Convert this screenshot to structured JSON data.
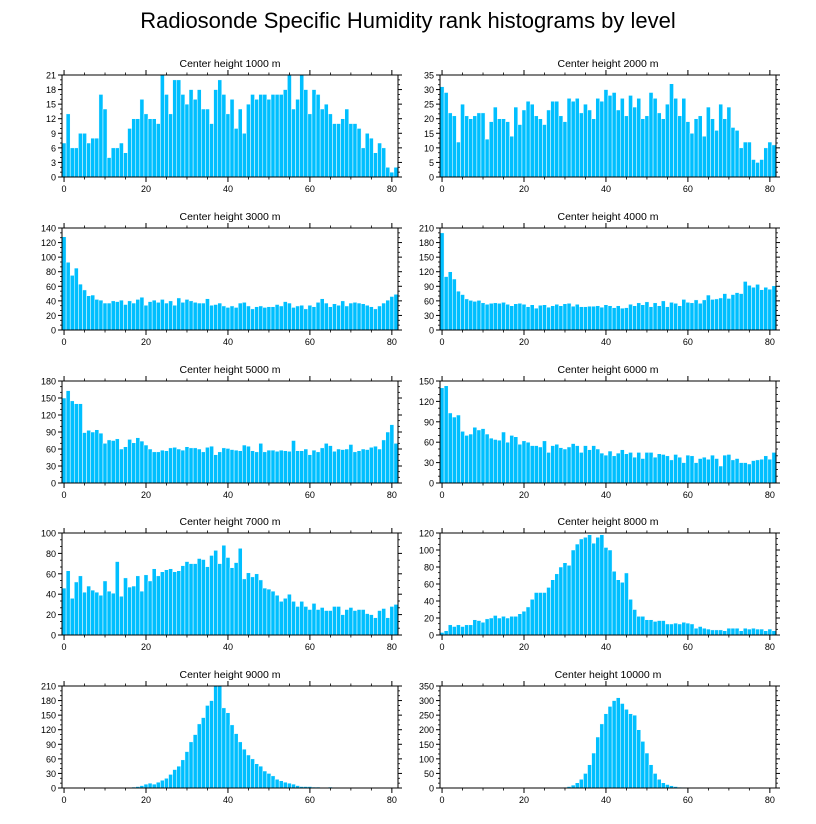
{
  "page": {
    "title": "Radiosonde Specific Humidity rank histograms by level"
  },
  "style": {
    "bar_color": "#00bfff",
    "bar_outline": "#ffffff",
    "axis_color": "#000000"
  },
  "chart_data": [
    {
      "type": "bar",
      "title": "Center height 1000 m",
      "ylim": [
        0,
        21
      ],
      "yticks": [
        0,
        3,
        6,
        9,
        12,
        15,
        18,
        21
      ],
      "xlim": [
        -0.5,
        81.5
      ],
      "xticks": [
        0,
        20,
        40,
        60,
        80
      ],
      "xlabel": "",
      "ylabel": "",
      "values": [
        7,
        13,
        6,
        6,
        9,
        9,
        7,
        8,
        8,
        17,
        14,
        4,
        6,
        6,
        7,
        5,
        10,
        12,
        12,
        16,
        13,
        12,
        12,
        11,
        21,
        17,
        13,
        20,
        20,
        17,
        15,
        18,
        16,
        18,
        14,
        14,
        11,
        18,
        20,
        17,
        13,
        16,
        10,
        14,
        9,
        15,
        17,
        16,
        17,
        17,
        16,
        17,
        17,
        17,
        18,
        21,
        14,
        16,
        21,
        18,
        13,
        18,
        17,
        14,
        15,
        13,
        11,
        11,
        12,
        14,
        11,
        11,
        10,
        6,
        9,
        8,
        5,
        7,
        6,
        2,
        1,
        2
      ]
    },
    {
      "type": "bar",
      "title": "Center height 2000 m",
      "ylim": [
        0,
        35
      ],
      "yticks": [
        0,
        5,
        10,
        15,
        20,
        25,
        30,
        35
      ],
      "xlim": [
        -0.5,
        81.5
      ],
      "xticks": [
        0,
        20,
        40,
        60,
        80
      ],
      "xlabel": "",
      "ylabel": "",
      "values": [
        31,
        29,
        22,
        21,
        12,
        25,
        21,
        20,
        21,
        22,
        22,
        13,
        19,
        24,
        20,
        20,
        19,
        14,
        24,
        18,
        23,
        26,
        25,
        21,
        20,
        18,
        23,
        26,
        26,
        21,
        19,
        27,
        26,
        27,
        22,
        25,
        23,
        20,
        27,
        26,
        30,
        28,
        29,
        23,
        27,
        21,
        28,
        24,
        27,
        20,
        21,
        29,
        27,
        22,
        20,
        25,
        32,
        27,
        21,
        27,
        19,
        15,
        20,
        21,
        14,
        24,
        20,
        16,
        25,
        20,
        24,
        17,
        16,
        10,
        12,
        12,
        6,
        5,
        6,
        10,
        12,
        11
      ]
    },
    {
      "type": "bar",
      "title": "Center height 3000 m",
      "ylim": [
        0,
        140
      ],
      "yticks": [
        0,
        20,
        40,
        60,
        80,
        100,
        120,
        140
      ],
      "xlim": [
        -0.5,
        81.5
      ],
      "xticks": [
        0,
        20,
        40,
        60,
        80
      ],
      "xlabel": "",
      "ylabel": "",
      "values": [
        128,
        93,
        75,
        85,
        63,
        55,
        47,
        48,
        42,
        41,
        37,
        37,
        40,
        39,
        41,
        35,
        40,
        37,
        42,
        45,
        34,
        39,
        41,
        38,
        42,
        37,
        40,
        34,
        44,
        38,
        42,
        40,
        38,
        37,
        37,
        43,
        34,
        35,
        37,
        33,
        31,
        33,
        31,
        37,
        38,
        33,
        29,
        32,
        33,
        31,
        32,
        32,
        35,
        33,
        39,
        37,
        31,
        33,
        34,
        29,
        34,
        32,
        38,
        43,
        37,
        32,
        36,
        34,
        40,
        33,
        37,
        38,
        37,
        36,
        34,
        32,
        29,
        33,
        37,
        41,
        46,
        49
      ]
    },
    {
      "type": "bar",
      "title": "Center height 4000 m",
      "ylim": [
        0,
        210
      ],
      "yticks": [
        0,
        30,
        60,
        90,
        120,
        150,
        180,
        210
      ],
      "xlim": [
        -0.5,
        81.5
      ],
      "xticks": [
        0,
        20,
        40,
        60,
        80
      ],
      "xlabel": "",
      "ylabel": "",
      "values": [
        200,
        110,
        120,
        105,
        80,
        73,
        64,
        61,
        59,
        61,
        56,
        53,
        55,
        56,
        55,
        57,
        53,
        50,
        54,
        55,
        53,
        48,
        52,
        45,
        51,
        52,
        47,
        50,
        53,
        50,
        54,
        55,
        49,
        53,
        48,
        48,
        49,
        49,
        50,
        47,
        52,
        50,
        46,
        50,
        45,
        46,
        53,
        50,
        56,
        52,
        58,
        48,
        56,
        50,
        60,
        48,
        57,
        55,
        50,
        63,
        57,
        56,
        62,
        55,
        62,
        72,
        63,
        64,
        66,
        75,
        65,
        73,
        77,
        75,
        100,
        92,
        88,
        94,
        83,
        88,
        84,
        91
      ]
    },
    {
      "type": "bar",
      "title": "Center height 5000 m",
      "ylim": [
        0,
        180
      ],
      "yticks": [
        0,
        30,
        60,
        90,
        120,
        150,
        180
      ],
      "xlim": [
        -0.5,
        81.5
      ],
      "xticks": [
        0,
        20,
        40,
        60,
        80
      ],
      "xlabel": "",
      "ylabel": "",
      "values": [
        150,
        163,
        145,
        140,
        140,
        89,
        93,
        90,
        94,
        88,
        70,
        76,
        75,
        78,
        60,
        64,
        77,
        71,
        80,
        74,
        67,
        60,
        55,
        55,
        58,
        57,
        62,
        63,
        60,
        58,
        64,
        62,
        62,
        60,
        55,
        63,
        65,
        50,
        55,
        62,
        61,
        59,
        58,
        57,
        67,
        65,
        57,
        55,
        70,
        55,
        58,
        58,
        56,
        58,
        57,
        56,
        75,
        57,
        57,
        60,
        50,
        58,
        55,
        62,
        70,
        66,
        56,
        60,
        59,
        60,
        68,
        55,
        57,
        60,
        59,
        63,
        65,
        60,
        76,
        90,
        103,
        70
      ]
    },
    {
      "type": "bar",
      "title": "Center height 6000 m",
      "ylim": [
        0,
        150
      ],
      "yticks": [
        0,
        30,
        60,
        90,
        120,
        150
      ],
      "xlim": [
        -0.5,
        81.5
      ],
      "xticks": [
        0,
        20,
        40,
        60,
        80
      ],
      "xlabel": "",
      "ylabel": "",
      "values": [
        140,
        143,
        103,
        97,
        100,
        76,
        70,
        72,
        82,
        78,
        80,
        72,
        66,
        64,
        63,
        75,
        60,
        70,
        68,
        57,
        62,
        60,
        55,
        55,
        53,
        62,
        45,
        55,
        57,
        52,
        50,
        53,
        58,
        55,
        45,
        55,
        49,
        55,
        50,
        44,
        41,
        47,
        40,
        44,
        49,
        43,
        45,
        38,
        45,
        36,
        45,
        45,
        38,
        43,
        42,
        40,
        34,
        42,
        38,
        30,
        41,
        40,
        30,
        36,
        38,
        35,
        41,
        36,
        25,
        41,
        42,
        34,
        36,
        30,
        30,
        28,
        33,
        34,
        35,
        40,
        35,
        45
      ]
    },
    {
      "type": "bar",
      "title": "Center height 7000 m",
      "ylim": [
        0,
        100
      ],
      "yticks": [
        0,
        20,
        40,
        60,
        80,
        100
      ],
      "xlim": [
        -0.5,
        81.5
      ],
      "xticks": [
        0,
        20,
        40,
        60,
        80
      ],
      "xlabel": "",
      "ylabel": "",
      "values": [
        46,
        63,
        36,
        52,
        58,
        42,
        48,
        44,
        42,
        39,
        53,
        43,
        41,
        72,
        38,
        56,
        47,
        48,
        58,
        43,
        59,
        53,
        65,
        58,
        62,
        64,
        65,
        62,
        63,
        68,
        72,
        70,
        70,
        75,
        74,
        67,
        78,
        83,
        70,
        88,
        76,
        66,
        71,
        85,
        55,
        61,
        57,
        60,
        54,
        46,
        45,
        43,
        39,
        33,
        36,
        40,
        33,
        28,
        33,
        28,
        25,
        31,
        25,
        27,
        24,
        24,
        28,
        28,
        20,
        25,
        27,
        24,
        25,
        25,
        21,
        20,
        17,
        24,
        26,
        17,
        28,
        30
      ]
    },
    {
      "type": "bar",
      "title": "Center height 8000 m",
      "ylim": [
        0,
        120
      ],
      "yticks": [
        0,
        20,
        40,
        60,
        80,
        100,
        120
      ],
      "xlim": [
        -0.5,
        81.5
      ],
      "xticks": [
        0,
        20,
        40,
        60,
        80
      ],
      "xlabel": "",
      "ylabel": "",
      "values": [
        3,
        5,
        12,
        10,
        12,
        10,
        12,
        12,
        18,
        17,
        15,
        19,
        20,
        23,
        20,
        22,
        20,
        22,
        22,
        25,
        28,
        33,
        42,
        50,
        50,
        50,
        56,
        65,
        72,
        80,
        85,
        82,
        100,
        107,
        113,
        115,
        118,
        108,
        115,
        118,
        103,
        100,
        75,
        65,
        62,
        73,
        42,
        30,
        22,
        22,
        18,
        18,
        16,
        17,
        17,
        13,
        13,
        14,
        13,
        15,
        14,
        13,
        8,
        10,
        8,
        7,
        6,
        6,
        6,
        5,
        8,
        8,
        8,
        5,
        8,
        7,
        8,
        7,
        7,
        5,
        7,
        5
      ]
    },
    {
      "type": "bar",
      "title": "Center height 9000 m",
      "ylim": [
        0,
        210
      ],
      "yticks": [
        0,
        30,
        60,
        90,
        120,
        150,
        180,
        210
      ],
      "xlim": [
        -0.5,
        81.5
      ],
      "xticks": [
        0,
        20,
        40,
        60,
        80
      ],
      "xlabel": "",
      "ylabel": "",
      "values": [
        0,
        0,
        0,
        0,
        0,
        0,
        0,
        0,
        0,
        0,
        0,
        0,
        0,
        0,
        0,
        0,
        1,
        2,
        3,
        5,
        8,
        10,
        8,
        12,
        16,
        20,
        28,
        38,
        45,
        58,
        75,
        95,
        110,
        132,
        145,
        170,
        180,
        210,
        210,
        165,
        155,
        130,
        112,
        95,
        80,
        68,
        60,
        50,
        45,
        35,
        30,
        25,
        18,
        15,
        12,
        10,
        8,
        5,
        3,
        3,
        3,
        2,
        2,
        1,
        1,
        2,
        1,
        1,
        1,
        0,
        1,
        0,
        0,
        0,
        0,
        0,
        0,
        0,
        0,
        0,
        0,
        0
      ]
    },
    {
      "type": "bar",
      "title": "Center height 10000 m",
      "ylim": [
        0,
        350
      ],
      "yticks": [
        0,
        50,
        100,
        150,
        200,
        250,
        300,
        350
      ],
      "xlim": [
        -0.5,
        81.5
      ],
      "xticks": [
        0,
        20,
        40,
        60,
        80
      ],
      "xlabel": "",
      "ylabel": "",
      "values": [
        0,
        0,
        0,
        0,
        0,
        0,
        0,
        0,
        0,
        0,
        0,
        0,
        0,
        0,
        0,
        0,
        0,
        0,
        0,
        0,
        0,
        0,
        0,
        0,
        0,
        0,
        0,
        0,
        0,
        1,
        2,
        5,
        10,
        18,
        30,
        50,
        80,
        120,
        175,
        220,
        255,
        280,
        300,
        310,
        290,
        270,
        255,
        250,
        200,
        160,
        120,
        80,
        50,
        30,
        18,
        12,
        8,
        5,
        3,
        2,
        1,
        1,
        0,
        0,
        0,
        0,
        0,
        0,
        0,
        0,
        0,
        0,
        0,
        0,
        0,
        0,
        0,
        0,
        0,
        0,
        0,
        0
      ]
    }
  ]
}
